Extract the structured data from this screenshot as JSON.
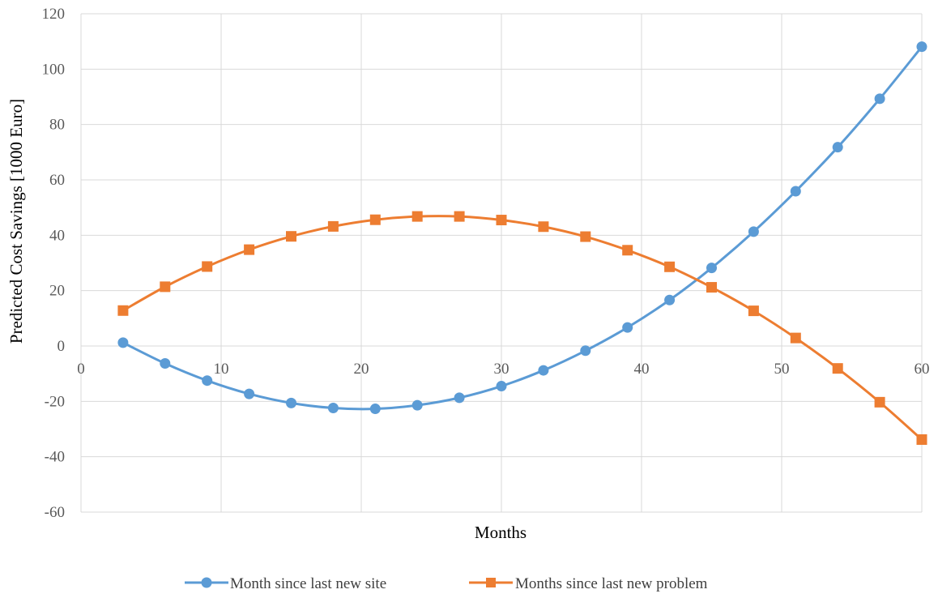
{
  "chart_data": {
    "type": "line",
    "title": "",
    "xlabel": "Months",
    "ylabel": "Predicted Cost Savings [1000 Euro]",
    "xlim": [
      0,
      60
    ],
    "ylim": [
      -60,
      120
    ],
    "x_ticks": [
      0,
      10,
      20,
      30,
      40,
      50,
      60
    ],
    "y_ticks": [
      -60,
      -40,
      -20,
      0,
      20,
      40,
      60,
      80,
      100,
      120
    ],
    "grid": true,
    "legend_position": "bottom",
    "series": [
      {
        "name": "Month since last new site",
        "color": "#5B9BD5",
        "marker": "circle",
        "x": [
          3,
          6,
          9,
          12,
          15,
          18,
          21,
          24,
          27,
          30,
          33,
          36,
          39,
          42,
          45,
          48,
          51,
          54,
          57,
          60
        ],
        "y": [
          1.2,
          -6.3,
          -12.5,
          -17.3,
          -20.6,
          -22.4,
          -22.7,
          -21.4,
          -18.7,
          -14.5,
          -8.8,
          -1.7,
          6.7,
          16.6,
          28.2,
          41.3,
          55.9,
          71.8,
          89.3,
          108.1
        ]
      },
      {
        "name": "Months since last new problem",
        "color": "#ED7D31",
        "marker": "square",
        "x": [
          3,
          6,
          9,
          12,
          15,
          18,
          21,
          24,
          27,
          30,
          33,
          36,
          39,
          42,
          45,
          48,
          51,
          54,
          57,
          60
        ],
        "y": [
          12.8,
          21.4,
          28.7,
          34.8,
          39.6,
          43.2,
          45.6,
          46.8,
          46.8,
          45.5,
          43.1,
          39.5,
          34.6,
          28.6,
          21.2,
          12.7,
          2.9,
          -8.1,
          -20.3,
          -33.8
        ]
      }
    ]
  }
}
